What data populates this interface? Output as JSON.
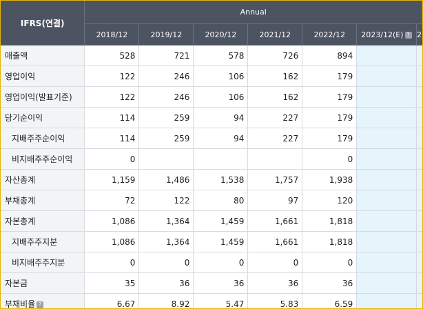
{
  "header": {
    "corner": "IFRS(연결)",
    "group": "Annual",
    "years": [
      "2018/12",
      "2019/12",
      "2020/12",
      "2021/12",
      "2022/12"
    ],
    "estimate_year": "2023/12(E)",
    "help_glyph": "?",
    "truncated_col": "2"
  },
  "rows": [
    {
      "label": "매출액",
      "sub": false,
      "values": [
        "528",
        "721",
        "578",
        "726",
        "894"
      ],
      "help": false
    },
    {
      "label": "영업이익",
      "sub": false,
      "values": [
        "122",
        "246",
        "106",
        "162",
        "179"
      ],
      "help": false
    },
    {
      "label": "영업이익(발표기준)",
      "sub": false,
      "values": [
        "122",
        "246",
        "106",
        "162",
        "179"
      ],
      "help": false
    },
    {
      "label": "당기순이익",
      "sub": false,
      "values": [
        "114",
        "259",
        "94",
        "227",
        "179"
      ],
      "help": false
    },
    {
      "label": "지배주주순이익",
      "sub": true,
      "values": [
        "114",
        "259",
        "94",
        "227",
        "179"
      ],
      "help": false
    },
    {
      "label": "비지배주주순이익",
      "sub": true,
      "values": [
        "0",
        "",
        "",
        "",
        "0"
      ],
      "help": false
    },
    {
      "label": "자산총계",
      "sub": false,
      "values": [
        "1,159",
        "1,486",
        "1,538",
        "1,757",
        "1,938"
      ],
      "help": false
    },
    {
      "label": "부채총계",
      "sub": false,
      "values": [
        "72",
        "122",
        "80",
        "97",
        "120"
      ],
      "help": false
    },
    {
      "label": "자본총계",
      "sub": false,
      "values": [
        "1,086",
        "1,364",
        "1,459",
        "1,661",
        "1,818"
      ],
      "help": false
    },
    {
      "label": "지배주주지분",
      "sub": true,
      "values": [
        "1,086",
        "1,364",
        "1,459",
        "1,661",
        "1,818"
      ],
      "help": false
    },
    {
      "label": "비지배주주지분",
      "sub": true,
      "values": [
        "0",
        "0",
        "0",
        "0",
        "0"
      ],
      "help": false
    },
    {
      "label": "자본금",
      "sub": false,
      "values": [
        "35",
        "36",
        "36",
        "36",
        "36"
      ],
      "help": false
    },
    {
      "label": "부채비율",
      "sub": false,
      "values": [
        "6.67",
        "8.92",
        "5.47",
        "5.83",
        "6.59"
      ],
      "help": true
    }
  ],
  "colors": {
    "header_bg": "#4c5361",
    "label_bg": "#f3f4f6",
    "estimate_bg": "#e6f4fb",
    "frame_border": "#e8b400"
  }
}
